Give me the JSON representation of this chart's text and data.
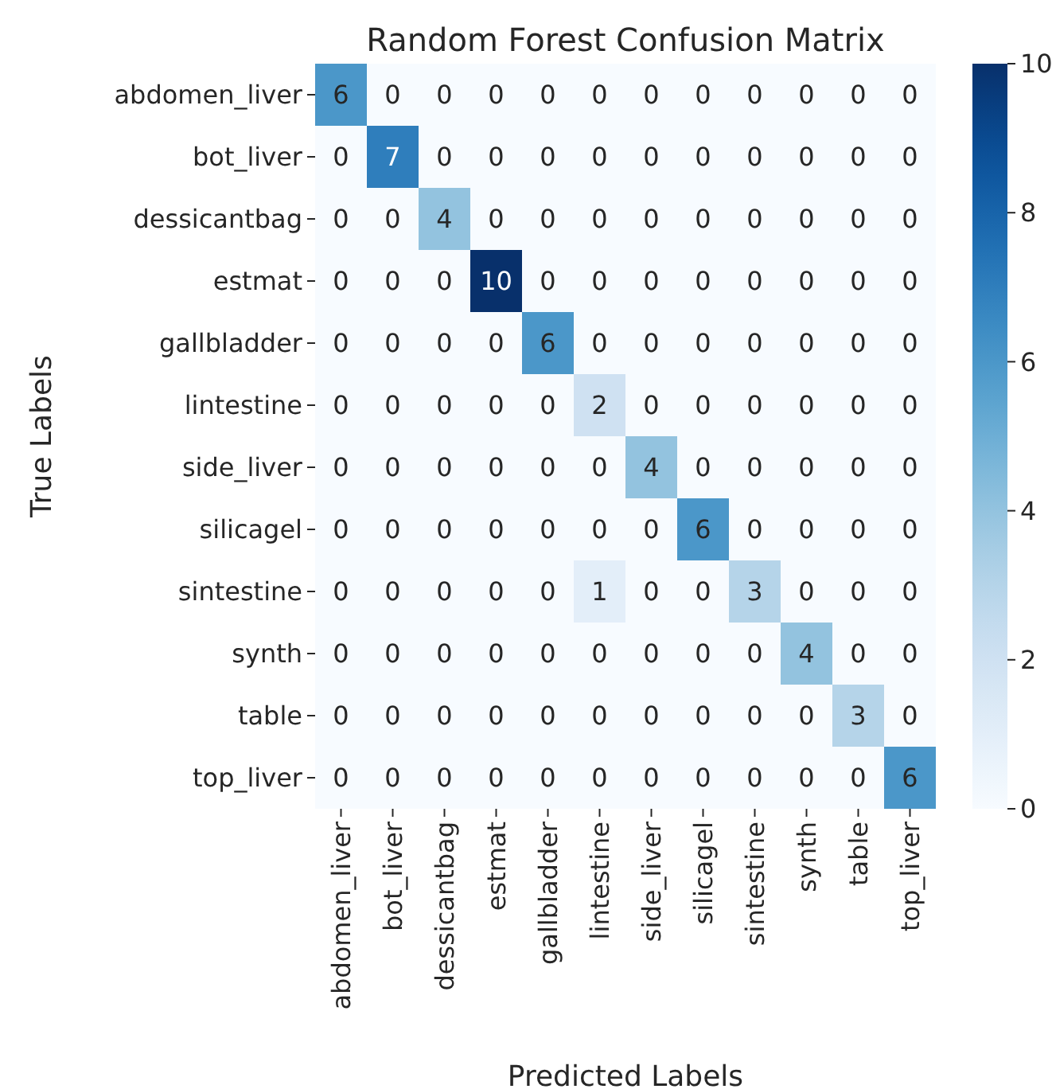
{
  "chart_data": {
    "type": "heatmap",
    "title": "Random Forest Confusion Matrix",
    "xlabel": "Predicted Labels",
    "ylabel": "True Labels",
    "categories": [
      "abdomen_liver",
      "bot_liver",
      "dessicantbag",
      "estmat",
      "gallbladder",
      "lintestine",
      "side_liver",
      "silicagel",
      "sintestine",
      "synth",
      "table",
      "top_liver"
    ],
    "y_categories": [
      "abdomen_liver",
      "bot_liver",
      "dessicantbag",
      "estmat",
      "gallbladder",
      "lintestine",
      "side_liver",
      "silicagel",
      "sintestine",
      "synth",
      "table",
      "top_liver"
    ],
    "cells": [
      [
        6,
        0,
        0,
        0,
        0,
        0,
        0,
        0,
        0,
        0,
        0,
        0
      ],
      [
        0,
        7,
        0,
        0,
        0,
        0,
        0,
        0,
        0,
        0,
        0,
        0
      ],
      [
        0,
        0,
        4,
        0,
        0,
        0,
        0,
        0,
        0,
        0,
        0,
        0
      ],
      [
        0,
        0,
        0,
        10,
        0,
        0,
        0,
        0,
        0,
        0,
        0,
        0
      ],
      [
        0,
        0,
        0,
        0,
        6,
        0,
        0,
        0,
        0,
        0,
        0,
        0
      ],
      [
        0,
        0,
        0,
        0,
        0,
        2,
        0,
        0,
        0,
        0,
        0,
        0
      ],
      [
        0,
        0,
        0,
        0,
        0,
        0,
        4,
        0,
        0,
        0,
        0,
        0
      ],
      [
        0,
        0,
        0,
        0,
        0,
        0,
        0,
        6,
        0,
        0,
        0,
        0
      ],
      [
        0,
        0,
        0,
        0,
        0,
        1,
        0,
        0,
        3,
        0,
        0,
        0
      ],
      [
        0,
        0,
        0,
        0,
        0,
        0,
        0,
        0,
        0,
        4,
        0,
        0
      ],
      [
        0,
        0,
        0,
        0,
        0,
        0,
        0,
        0,
        0,
        0,
        3,
        0
      ],
      [
        0,
        0,
        0,
        0,
        0,
        0,
        0,
        0,
        0,
        0,
        0,
        6
      ]
    ],
    "data_labels": true,
    "clim": [
      0,
      10
    ],
    "cticks": [
      0,
      2,
      4,
      6,
      8,
      10
    ]
  }
}
